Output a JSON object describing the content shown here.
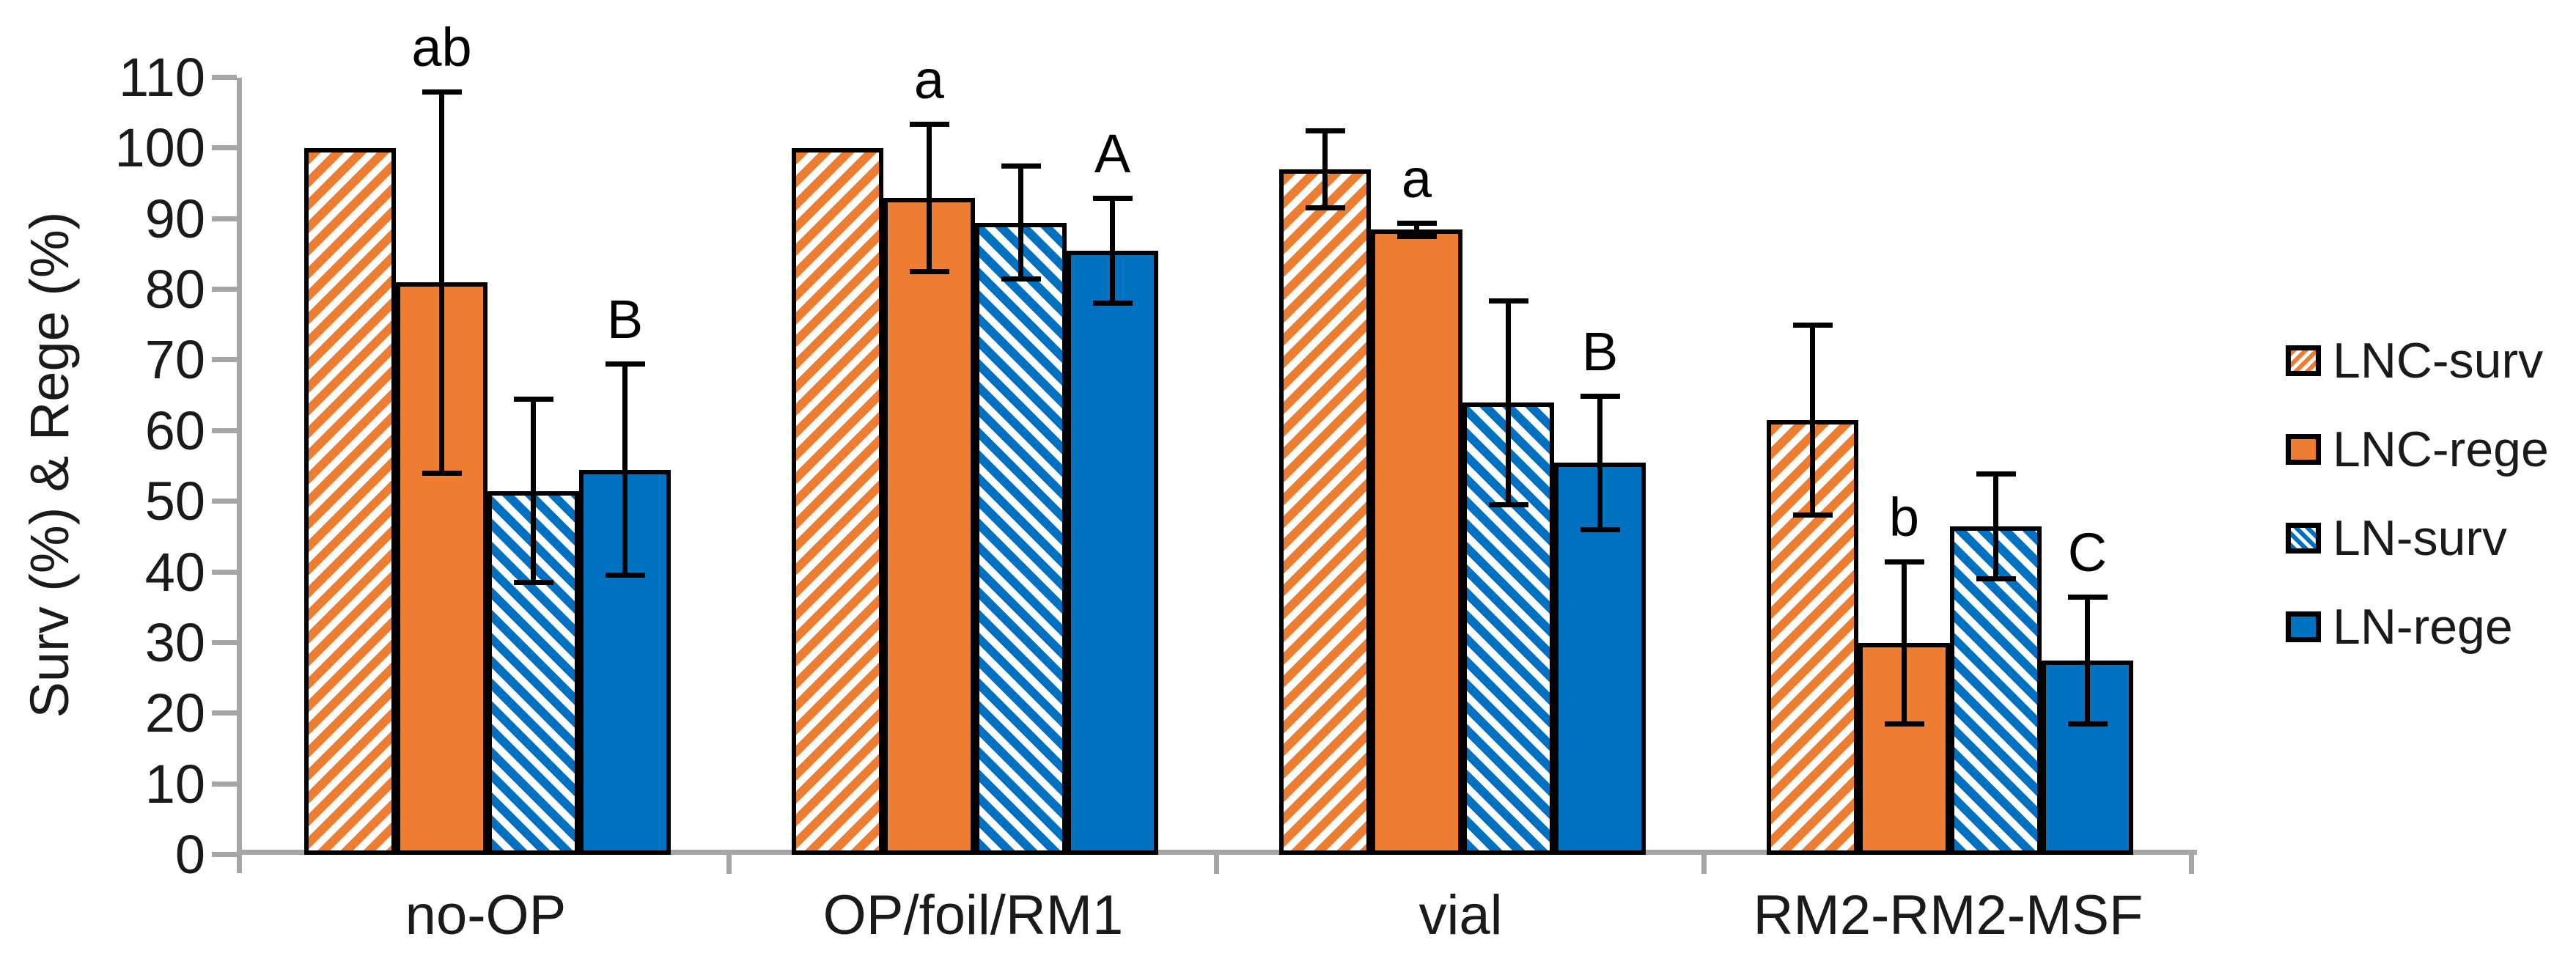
{
  "chart_data": {
    "type": "bar",
    "title": "",
    "ylabel": "Surv (%) & Rege (%)",
    "xlabel": "",
    "ylim": [
      0,
      110
    ],
    "yticks": [
      0,
      10,
      20,
      30,
      40,
      50,
      60,
      70,
      80,
      90,
      100,
      110
    ],
    "grid": "off",
    "categories": [
      "no-OP",
      "OP/foil/RM1",
      "vial",
      "RM2-RM2-MSF"
    ],
    "series": [
      {
        "name": "LNC-surv",
        "pattern": "diagonal-up-hatch",
        "color": "#ED7D31",
        "values": [
          100,
          100,
          97,
          61.5
        ],
        "errors": [
          0,
          0,
          5.5,
          13.5
        ]
      },
      {
        "name": "LNC-rege",
        "pattern": "solid",
        "color": "#ED7D31",
        "values": [
          81,
          93,
          88.5,
          30
        ],
        "errors": [
          27,
          10.5,
          1,
          11.5
        ]
      },
      {
        "name": "LN-surv",
        "pattern": "diagonal-down-hatch",
        "color": "#0070C0",
        "values": [
          51.5,
          89.5,
          64,
          46.5
        ],
        "errors": [
          13,
          8,
          14.5,
          7.5
        ]
      },
      {
        "name": "LN-rege",
        "pattern": "solid",
        "color": "#0070C0",
        "values": [
          54.5,
          85.5,
          55.5,
          27.5
        ],
        "errors": [
          15,
          7.5,
          9.5,
          9
        ]
      }
    ],
    "annotations": [
      {
        "category_index": 0,
        "series_index": 1,
        "text": "ab"
      },
      {
        "category_index": 0,
        "series_index": 3,
        "text": "B"
      },
      {
        "category_index": 1,
        "series_index": 1,
        "text": "a"
      },
      {
        "category_index": 1,
        "series_index": 3,
        "text": "A"
      },
      {
        "category_index": 2,
        "series_index": 1,
        "text": "a"
      },
      {
        "category_index": 2,
        "series_index": 3,
        "text": "B"
      },
      {
        "category_index": 3,
        "series_index": 1,
        "text": "b"
      },
      {
        "category_index": 3,
        "series_index": 3,
        "text": "C"
      }
    ],
    "legend": {
      "position": "right",
      "entries": [
        "LNC-surv",
        "LNC-rege",
        "LN-surv",
        "LN-rege"
      ]
    },
    "colors": {
      "orange": "#ED7D31",
      "blue": "#0070C0",
      "axis_gray": "#A6A6A6",
      "error_bar": "#000000",
      "bar_border": "#000000"
    }
  }
}
